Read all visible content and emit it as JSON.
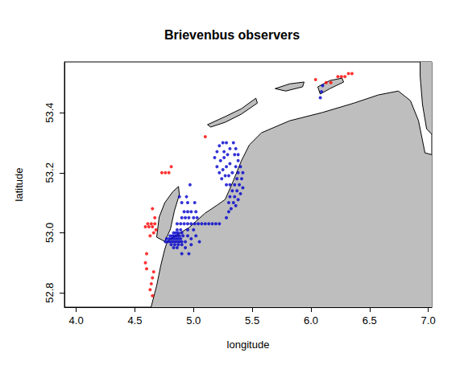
{
  "chart_data": {
    "type": "scatter",
    "title": "Brievenbus observers",
    "x_label": "longitude",
    "y_label": "latitude",
    "xlim": [
      3.9,
      7.03
    ],
    "ylim": [
      52.752,
      53.569
    ],
    "xticks": [
      {
        "value": 4,
        "label": "4.0"
      },
      4.5,
      {
        "value": 5,
        "label": "5.0"
      },
      5.5,
      {
        "value": 6,
        "label": "6.0"
      },
      6.5,
      {
        "value": 7,
        "label": "7.0"
      }
    ],
    "yticks": [
      52.8,
      {
        "value": 53,
        "label": "53.0"
      },
      53.2,
      53.4
    ],
    "grid": false,
    "marker": "circle",
    "land": [
      [
        [
          4.63,
          52.7
        ],
        [
          4.638,
          52.752
        ],
        [
          4.686,
          52.824
        ],
        [
          4.721,
          52.891
        ],
        [
          4.755,
          52.945
        ],
        [
          4.776,
          52.971
        ],
        [
          4.824,
          52.985
        ],
        [
          4.961,
          53.017
        ],
        [
          5.098,
          53.065
        ],
        [
          5.201,
          53.092
        ],
        [
          5.27,
          53.111
        ],
        [
          5.338,
          53.172
        ],
        [
          5.407,
          53.239
        ],
        [
          5.476,
          53.293
        ],
        [
          5.579,
          53.333
        ],
        [
          5.819,
          53.373
        ],
        [
          6.093,
          53.4
        ],
        [
          6.368,
          53.432
        ],
        [
          6.574,
          53.459
        ],
        [
          6.745,
          53.472
        ],
        [
          6.848,
          53.44
        ],
        [
          6.917,
          53.373
        ],
        [
          6.972,
          53.266
        ],
        [
          7.1,
          53.253
        ],
        [
          7.1,
          52.7
        ]
      ],
      [
        [
          6.931,
          53.521
        ],
        [
          6.93,
          53.6
        ],
        [
          7.1,
          53.6
        ],
        [
          7.1,
          53.3
        ],
        [
          6.986,
          53.346
        ],
        [
          6.951,
          53.427
        ]
      ],
      [
        [
          4.686,
          52.985
        ],
        [
          4.707,
          53.052
        ],
        [
          4.755,
          53.1
        ],
        [
          4.824,
          53.137
        ],
        [
          4.872,
          53.154
        ],
        [
          4.879,
          53.127
        ],
        [
          4.837,
          53.073
        ],
        [
          4.803,
          53.012
        ],
        [
          4.755,
          52.971
        ]
      ],
      [
        [
          5.119,
          53.36
        ],
        [
          5.27,
          53.387
        ],
        [
          5.407,
          53.413
        ],
        [
          5.531,
          53.448
        ],
        [
          5.544,
          53.432
        ],
        [
          5.407,
          53.395
        ],
        [
          5.27,
          53.368
        ],
        [
          5.146,
          53.352
        ]
      ],
      [
        [
          5.695,
          53.48
        ],
        [
          5.819,
          53.496
        ],
        [
          5.942,
          53.502
        ],
        [
          5.929,
          53.486
        ],
        [
          5.785,
          53.472
        ]
      ],
      [
        [
          6.059,
          53.486
        ],
        [
          6.162,
          53.507
        ],
        [
          6.265,
          53.515
        ],
        [
          6.279,
          53.502
        ],
        [
          6.162,
          53.48
        ],
        [
          6.079,
          53.462
        ]
      ]
    ],
    "series": [
      {
        "color": "#ff0000",
        "x": [
          6.04,
          6.13,
          6.17,
          6.23,
          6.26,
          6.29,
          6.32,
          6.35,
          5.1,
          4.73,
          4.76,
          4.79,
          4.81,
          4.65,
          4.67,
          4.61,
          4.64,
          4.67,
          4.59,
          4.62,
          4.65,
          4.68,
          4.63,
          4.66,
          4.6,
          4.59,
          4.6,
          4.66,
          4.65,
          4.64,
          4.63,
          4.65
        ],
        "y": [
          53.51,
          53.5,
          53.5,
          53.52,
          53.52,
          53.52,
          53.53,
          53.53,
          53.32,
          53.2,
          53.2,
          53.2,
          53.22,
          53.08,
          53.05,
          53.03,
          53.03,
          53.03,
          53.02,
          53.02,
          53.02,
          53.01,
          52.99,
          53.0,
          52.93,
          52.9,
          52.88,
          52.87,
          52.85,
          52.83,
          52.81,
          52.79
        ]
      },
      {
        "color": "#0000cd",
        "x": [
          4.76,
          4.78,
          4.8,
          4.82,
          4.84,
          4.86,
          4.88,
          4.9,
          4.93,
          4.77,
          4.79,
          4.81,
          4.83,
          4.85,
          4.87,
          4.89,
          4.8,
          4.82,
          4.84,
          4.86,
          4.88,
          4.91,
          4.95,
          4.83,
          4.85,
          4.87,
          4.9,
          4.81,
          4.84,
          4.87,
          4.9,
          4.98,
          4.83,
          4.86,
          4.93,
          4.9,
          4.96,
          4.86,
          4.89,
          4.95,
          5.0,
          4.86,
          4.89,
          4.92,
          4.95,
          4.98,
          5.01,
          5.04,
          5.07,
          5.1,
          5.13,
          5.16,
          5.19,
          5.22,
          4.9,
          4.93,
          4.96,
          5.0,
          5.03,
          4.92,
          4.95,
          4.98,
          5.02,
          4.9,
          4.95,
          5.01,
          4.88,
          4.94,
          4.97,
          5.02,
          5.05,
          4.98,
          5.28,
          5.3,
          5.32,
          5.3,
          5.34,
          5.36,
          5.31,
          5.35,
          5.38,
          5.33,
          5.37,
          5.4,
          5.35,
          5.39,
          5.42,
          5.37,
          5.41,
          5.38,
          5.42,
          5.4,
          5.36,
          5.38,
          5.35,
          5.38,
          5.36,
          5.34,
          5.18,
          5.2,
          5.22,
          5.25,
          5.28,
          5.31,
          5.2,
          5.23,
          5.26,
          5.29,
          5.22,
          5.25,
          5.28,
          5.31,
          5.24,
          5.27,
          5.3,
          5.33,
          5.28,
          5.31,
          5.26,
          6.08,
          6.09,
          6.1
        ],
        "y": [
          52.97,
          52.97,
          52.97,
          52.97,
          52.97,
          52.97,
          52.97,
          52.97,
          52.97,
          52.98,
          52.98,
          52.98,
          52.98,
          52.98,
          52.98,
          52.98,
          52.99,
          52.99,
          52.99,
          52.99,
          52.99,
          52.99,
          52.99,
          53.0,
          53.0,
          53.0,
          53.0,
          52.96,
          52.96,
          52.96,
          52.96,
          52.96,
          52.95,
          52.95,
          52.95,
          52.93,
          52.93,
          53.01,
          53.01,
          53.01,
          53.01,
          53.03,
          53.03,
          53.03,
          53.03,
          53.03,
          53.03,
          53.03,
          53.03,
          53.03,
          53.03,
          53.03,
          53.03,
          53.03,
          53.05,
          53.05,
          53.05,
          53.05,
          53.05,
          53.07,
          53.07,
          53.07,
          53.07,
          53.1,
          53.1,
          53.1,
          53.12,
          53.12,
          53.16,
          52.99,
          52.97,
          52.98,
          53.05,
          53.07,
          53.08,
          53.1,
          53.1,
          53.09,
          53.12,
          53.12,
          53.11,
          53.14,
          53.14,
          53.13,
          53.16,
          53.16,
          53.15,
          53.18,
          53.18,
          53.2,
          53.2,
          53.22,
          53.22,
          53.24,
          53.26,
          53.26,
          53.28,
          53.3,
          53.25,
          53.27,
          53.29,
          53.3,
          53.3,
          53.28,
          53.22,
          53.24,
          53.25,
          53.26,
          53.2,
          53.21,
          53.22,
          53.23,
          53.18,
          53.19,
          53.19,
          53.2,
          53.16,
          53.16,
          53.27,
          53.45,
          53.47,
          53.49
        ]
      }
    ]
  }
}
